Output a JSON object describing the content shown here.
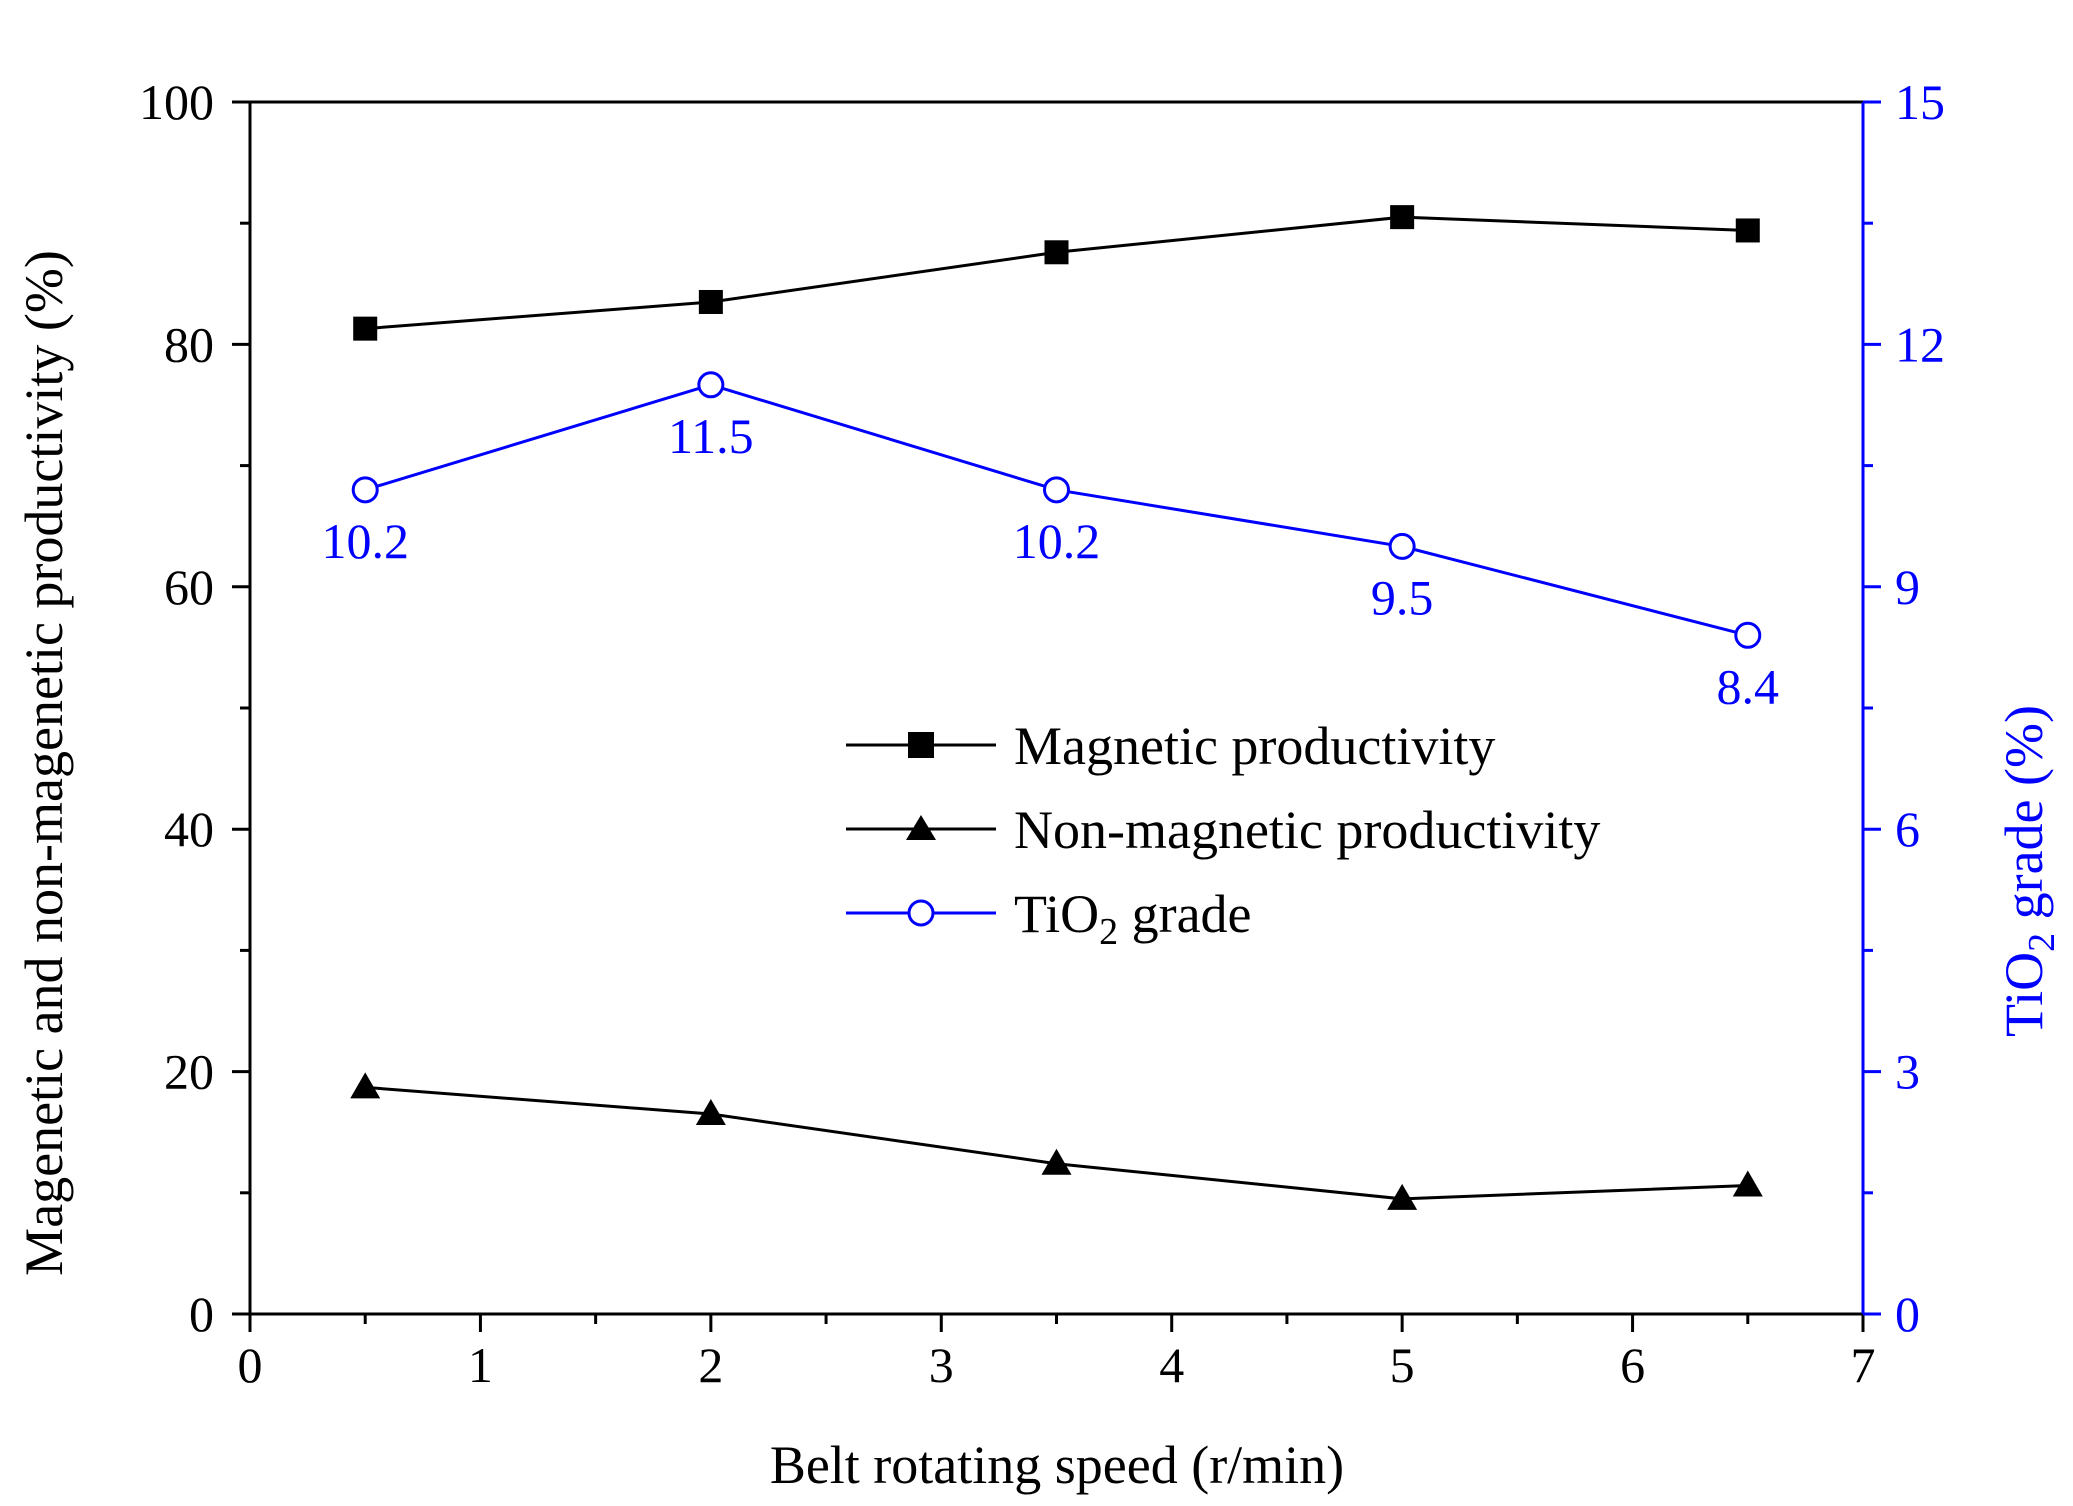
{
  "chart_data": {
    "type": "line",
    "xlabel": "Belt rotating speed (r/min)",
    "ylabel_left": "Magenetic and non-magenetic productivity (%)",
    "ylabel_right": {
      "base": "TiO",
      "sub": "2",
      "rest": " grade (%)"
    },
    "xlim": [
      0,
      7
    ],
    "ylim_left": [
      0,
      100
    ],
    "ylim_right": [
      0,
      15
    ],
    "x_ticks": [
      0,
      1,
      2,
      3,
      4,
      5,
      6,
      7
    ],
    "y_left_ticks": [
      0,
      20,
      40,
      60,
      80,
      100
    ],
    "y_right_ticks": [
      0,
      3,
      6,
      9,
      12,
      15
    ],
    "x": [
      0.5,
      2,
      3.5,
      5,
      6.5
    ],
    "series": [
      {
        "name": "Magnetic productivity",
        "axis": "left",
        "marker": "square",
        "color": "#000000",
        "values": [
          81.3,
          83.5,
          87.6,
          90.5,
          89.4
        ]
      },
      {
        "name": "Non-magnetic productivity",
        "axis": "left",
        "marker": "triangle",
        "color": "#000000",
        "values": [
          18.7,
          16.5,
          12.4,
          9.5,
          10.6
        ]
      },
      {
        "name": "TiO2 grade",
        "axis": "right",
        "marker": "open-circle",
        "color": "#0000FF",
        "values": [
          10.2,
          11.5,
          10.2,
          9.5,
          8.4
        ]
      }
    ],
    "data_labels": [
      "10.2",
      "11.5",
      "10.2",
      "9.5",
      "8.4"
    ],
    "legend": [
      {
        "label": "Magnetic productivity"
      },
      {
        "label": "Non-magnetic productivity"
      },
      {
        "label_base": "TiO",
        "label_sub": "2",
        "label_rest": " grade"
      }
    ],
    "legend_position": "center-right",
    "grid": false
  }
}
